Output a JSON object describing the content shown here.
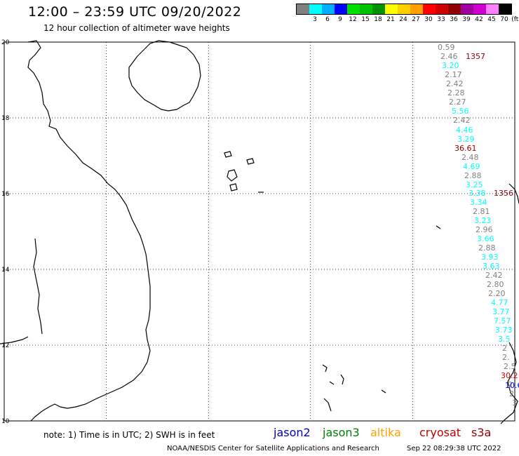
{
  "header": {
    "title": "12:00 – 23:59 UTC 09/20/2022",
    "subtitle": "12 hour collection of altimeter wave heights"
  },
  "color_scale": {
    "unit": "(ft)",
    "levels": [
      {
        "label": "",
        "color": "#808080"
      },
      {
        "label": "3",
        "color": "#00ffff"
      },
      {
        "label": "6",
        "color": "#00b0ff"
      },
      {
        "label": "9",
        "color": "#0000ff"
      },
      {
        "label": "12",
        "color": "#00e000"
      },
      {
        "label": "15",
        "color": "#00c000"
      },
      {
        "label": "18",
        "color": "#009000"
      },
      {
        "label": "21",
        "color": "#ffff00"
      },
      {
        "label": "24",
        "color": "#ffd000"
      },
      {
        "label": "27",
        "color": "#ffa000"
      },
      {
        "label": "30",
        "color": "#ff0000"
      },
      {
        "label": "33",
        "color": "#d00000"
      },
      {
        "label": "36",
        "color": "#900000"
      },
      {
        "label": "39",
        "color": "#a000a0"
      },
      {
        "label": "42",
        "color": "#d000d0"
      },
      {
        "label": "45",
        "color": "#ff80ff"
      },
      {
        "label": "70",
        "color": "#000000"
      }
    ]
  },
  "map": {
    "lon_range": [
      105,
      120
    ],
    "lat_range": [
      10,
      20
    ],
    "lat_ticks": [
      "20",
      "18",
      "16",
      "14",
      "12",
      "10"
    ],
    "lon_ticks": [
      "105",
      "108",
      "111",
      "114",
      "117",
      "120"
    ],
    "gridlines": true
  },
  "wave_heights": [
    {
      "text": "0.59",
      "color": "#808080"
    },
    {
      "text": "2.46",
      "color": "#808080"
    },
    {
      "text": "1357",
      "color": "#900000"
    },
    {
      "text": "3.20",
      "color": "#00ffff"
    },
    {
      "text": "2.17",
      "color": "#808080"
    },
    {
      "text": "2.42",
      "color": "#808080"
    },
    {
      "text": "2.28",
      "color": "#808080"
    },
    {
      "text": "2.27",
      "color": "#808080"
    },
    {
      "text": "5.56",
      "color": "#00ffff"
    },
    {
      "text": "2.42",
      "color": "#808080"
    },
    {
      "text": "4.46",
      "color": "#00ffff"
    },
    {
      "text": "3.29",
      "color": "#00ffff"
    },
    {
      "text": "36.61",
      "color": "#900000"
    },
    {
      "text": "2.48",
      "color": "#808080"
    },
    {
      "text": "4.69",
      "color": "#00ffff"
    },
    {
      "text": "2.88",
      "color": "#808080"
    },
    {
      "text": "3.25",
      "color": "#00ffff"
    },
    {
      "text": "3.38",
      "color": "#00ffff"
    },
    {
      "text": "1356",
      "color": "#900000"
    },
    {
      "text": "3.34",
      "color": "#00ffff"
    },
    {
      "text": "2.81",
      "color": "#808080"
    },
    {
      "text": "3.23",
      "color": "#00ffff"
    },
    {
      "text": "2.96",
      "color": "#808080"
    },
    {
      "text": "3.66",
      "color": "#00ffff"
    },
    {
      "text": "2.88",
      "color": "#808080"
    },
    {
      "text": "3.93",
      "color": "#00ffff"
    },
    {
      "text": "3.63",
      "color": "#00ffff"
    },
    {
      "text": "2.42",
      "color": "#808080"
    },
    {
      "text": "2.80",
      "color": "#808080"
    },
    {
      "text": "2.20",
      "color": "#808080"
    },
    {
      "text": "4.77",
      "color": "#00ffff"
    },
    {
      "text": "3.77",
      "color": "#00ffff"
    },
    {
      "text": "7.57",
      "color": "#00ffff"
    },
    {
      "text": "3.73",
      "color": "#00ffff"
    },
    {
      "text": "3.5",
      "color": "#00ffff"
    },
    {
      "text": "2",
      "color": "#808080"
    },
    {
      "text": "2.",
      "color": "#808080"
    },
    {
      "text": "2.5",
      "color": "#808080"
    },
    {
      "text": "30.2",
      "color": "#d00000"
    },
    {
      "text": "2",
      "color": "#808080"
    },
    {
      "text": "10.6",
      "color": "#0000ff"
    },
    {
      "text": "2",
      "color": "#808080"
    },
    {
      "text": "3",
      "color": "#808080"
    }
  ],
  "footer": {
    "note": "note:  1) Time is in UTC;  2) SWH is in feet",
    "satellites": [
      {
        "name": "jason2",
        "color": "#0000c0"
      },
      {
        "name": "jason3",
        "color": "#008000"
      },
      {
        "name": "altika",
        "color": "#ffa000"
      },
      {
        "name": "cryosat",
        "color": "#c00000"
      },
      {
        "name": "s3a",
        "color": "#900000"
      }
    ],
    "credit": "NOAA/NESDIS Center for Satellite Applications and Research",
    "timestamp": "Sep 22 08:29:38 UTC 2022"
  }
}
